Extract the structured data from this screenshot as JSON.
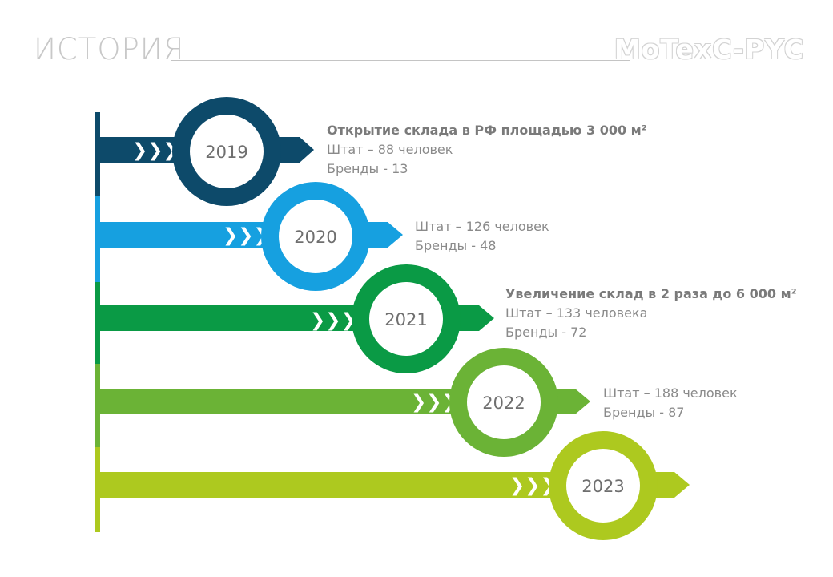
{
  "header": {
    "title": "ИСТОРИЯ",
    "logo": "MoTexC-PYC"
  },
  "milestones": [
    {
      "year": "2019",
      "color": "#0d4a6a",
      "headline": "Открытие склада в РФ площадью 3 000 м²",
      "staff": "Штат – 88 человек",
      "brands": "Бренды - 13"
    },
    {
      "year": "2020",
      "color": "#16a0e0",
      "headline": "",
      "staff": "Штат – 126 человек",
      "brands": "Бренды - 48"
    },
    {
      "year": "2021",
      "color": "#0a9a45",
      "headline": "Увеличение склад в 2 раза до 6 000 м²",
      "staff": "Штат – 133 человека",
      "brands": "Бренды - 72"
    },
    {
      "year": "2022",
      "color": "#6bb336",
      "headline": "",
      "staff": "Штат – 188 человек",
      "brands": "Бренды - 87"
    },
    {
      "year": "2023",
      "color": "#adc91f",
      "headline": "",
      "staff": "",
      "brands": ""
    }
  ]
}
